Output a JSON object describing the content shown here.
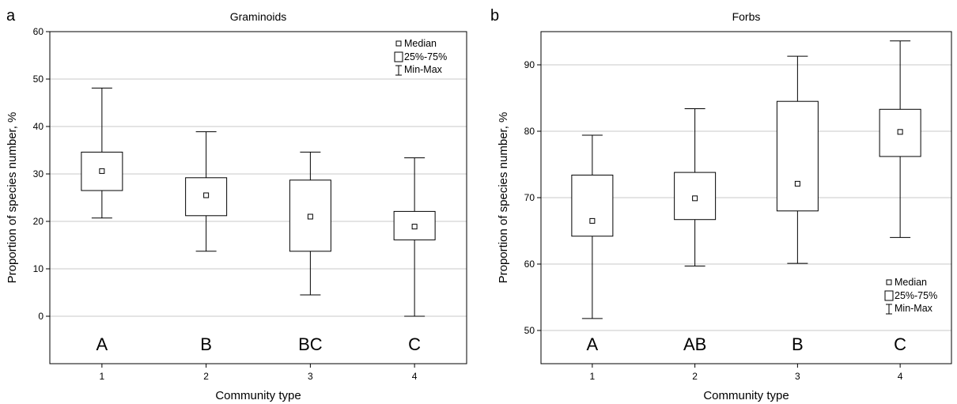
{
  "legend": {
    "median": "Median",
    "iqr": "25%-75%",
    "range": "Min-Max"
  },
  "chart_data": [
    {
      "type": "boxplot",
      "panel_label": "a",
      "title": "Graminoids",
      "xlabel": "Community type",
      "ylabel": "Proportion of species number, %",
      "ylim": [
        -10,
        60
      ],
      "yticks": [
        0,
        10,
        20,
        30,
        40,
        50,
        60
      ],
      "categories": [
        "1",
        "2",
        "3",
        "4"
      ],
      "group_letters": [
        "A",
        "B",
        "BC",
        "C"
      ],
      "grid": true,
      "legend_position": "top-right",
      "boxes": [
        {
          "min": 20.7,
          "q1": 26.5,
          "median": 30.6,
          "q3": 34.6,
          "max": 48.1
        },
        {
          "min": 13.7,
          "q1": 21.2,
          "median": 25.5,
          "q3": 29.2,
          "max": 38.9
        },
        {
          "min": 4.5,
          "q1": 13.7,
          "median": 21.0,
          "q3": 28.7,
          "max": 34.6
        },
        {
          "min": 0.0,
          "q1": 16.1,
          "median": 18.9,
          "q3": 22.1,
          "max": 33.4
        }
      ]
    },
    {
      "type": "boxplot",
      "panel_label": "b",
      "title": "Forbs",
      "xlabel": "Community type",
      "ylabel": "Proportion of species number, %",
      "ylim": [
        45,
        95
      ],
      "yticks": [
        50,
        60,
        70,
        80,
        90
      ],
      "categories": [
        "1",
        "2",
        "3",
        "4"
      ],
      "group_letters": [
        "A",
        "AB",
        "B",
        "C"
      ],
      "grid": true,
      "legend_position": "bottom-right",
      "boxes": [
        {
          "min": 51.8,
          "q1": 64.2,
          "median": 66.5,
          "q3": 73.4,
          "max": 79.4
        },
        {
          "min": 59.7,
          "q1": 66.7,
          "median": 69.9,
          "q3": 73.8,
          "max": 83.4
        },
        {
          "min": 60.1,
          "q1": 68.0,
          "median": 72.1,
          "q3": 84.5,
          "max": 91.3
        },
        {
          "min": 64.0,
          "q1": 76.2,
          "median": 79.9,
          "q3": 83.3,
          "max": 93.6
        }
      ]
    }
  ]
}
